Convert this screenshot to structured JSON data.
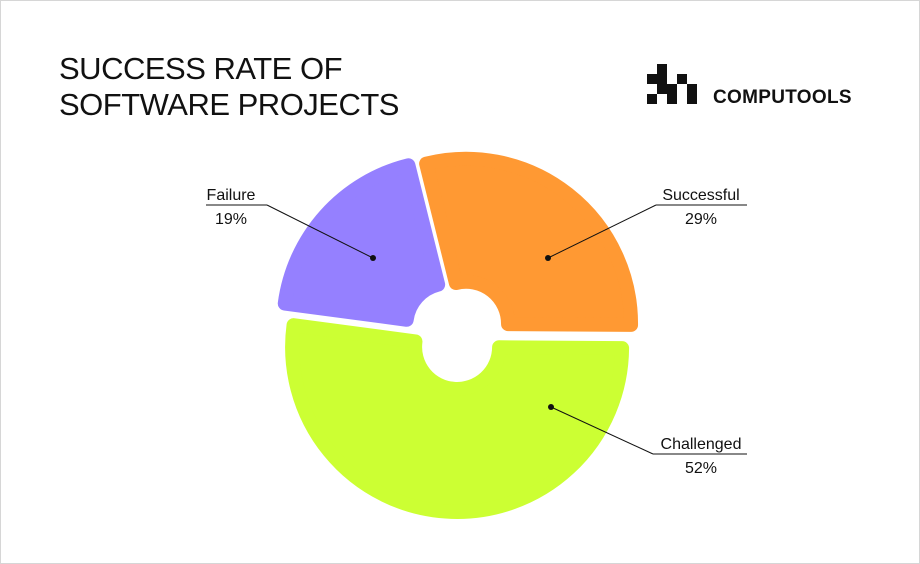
{
  "brand": "COMPUTOOLS",
  "chart_data": {
    "type": "pie",
    "title": "SUCCESS RATE OF SOFTWARE PROJECTS",
    "categories": [
      "Successful",
      "Challenged",
      "Failure"
    ],
    "values": [
      29,
      52,
      19
    ],
    "value_labels": [
      "29%",
      "52%",
      "19%"
    ],
    "colors": [
      "#ff9933",
      "#ccff33",
      "#9580ff"
    ]
  }
}
